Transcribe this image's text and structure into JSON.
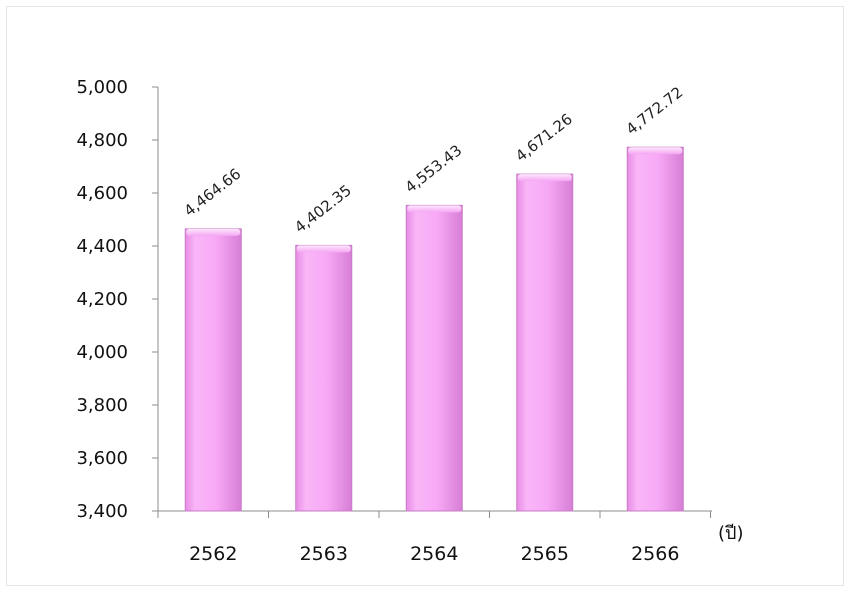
{
  "chart_data": {
    "type": "bar",
    "categories": [
      "2562",
      "2563",
      "2564",
      "2565",
      "2566"
    ],
    "values": [
      4464.66,
      4402.35,
      4553.43,
      4671.26,
      4772.72
    ],
    "data_labels": [
      "4,464.66",
      "4,402.35",
      "4,553.43",
      "4,671.26",
      "4,772.72"
    ],
    "ylim": [
      3400,
      5000
    ],
    "yticks": [
      3400,
      3600,
      3800,
      4000,
      4200,
      4400,
      4600,
      4800,
      5000
    ],
    "ytick_labels": [
      "3,400",
      "3,600",
      "3,800",
      "4,000",
      "4,200",
      "4,400",
      "4,600",
      "4,800",
      "5,000"
    ],
    "x_unit_label": "(ปี)",
    "grid": false,
    "legend": "none",
    "bar_color": "#f6a8f4",
    "bar_edge_color": "#c77cc6"
  }
}
